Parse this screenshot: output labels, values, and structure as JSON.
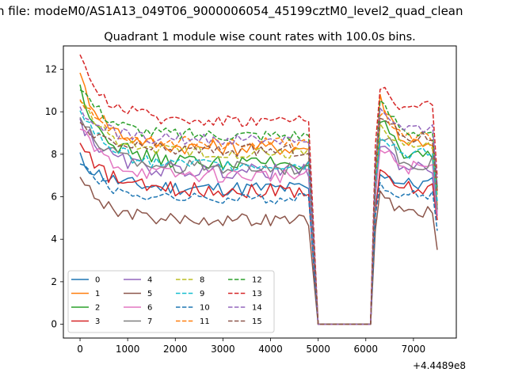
{
  "suptitle": "n file: modeM0/AS1A13_049T06_9000006054_45199cztM0_level2_quad_clean",
  "chart_data": {
    "type": "line",
    "title": "Quadrant 1 module wise count rates with 100.0s bins.",
    "xlabel": "",
    "ylabel": "",
    "x_offset_label": "+4.4489e8",
    "xlim": [
      -350,
      7900
    ],
    "ylim": [
      -0.65,
      13.1
    ],
    "x_ticks": [
      0,
      1000,
      2000,
      3000,
      4000,
      5000,
      6000,
      7000
    ],
    "x_tick_labels": [
      "0",
      "1000",
      "2000",
      "3000",
      "4000",
      "5000",
      "6000",
      "7000"
    ],
    "y_ticks": [
      0,
      2,
      4,
      6,
      8,
      10,
      12
    ],
    "y_tick_labels": [
      "0",
      "2",
      "4",
      "6",
      "8",
      "10",
      "12"
    ],
    "grid": false,
    "legend_placement": "lower-left",
    "legend_columns": 4,
    "segments": {
      "x_start": 0,
      "x_step": 100,
      "n_first": 49,
      "gap_start": 5000,
      "gap_end": 6100,
      "x_second_start": 6100,
      "x_second_end": 7500
    },
    "series": [
      {
        "name": "0",
        "color": "#1f77b4",
        "dash": "solid",
        "start": 7.8,
        "level1": 6.4,
        "amp1": 0.35,
        "peak2": 7.2,
        "level2": 6.6,
        "end": 5.3
      },
      {
        "name": "1",
        "color": "#ff7f0e",
        "dash": "solid",
        "start": 11.6,
        "level1": 8.3,
        "amp1": 0.35,
        "peak2": 10.6,
        "level2": 8.6,
        "end": 5.6
      },
      {
        "name": "2",
        "color": "#2ca02c",
        "dash": "solid",
        "start": 11.1,
        "level1": 7.6,
        "amp1": 0.35,
        "peak2": 9.6,
        "level2": 7.8,
        "end": 5.4
      },
      {
        "name": "3",
        "color": "#d62728",
        "dash": "solid",
        "start": 8.4,
        "level1": 6.3,
        "amp1": 0.35,
        "peak2": 7.0,
        "level2": 6.4,
        "end": 4.9
      },
      {
        "name": "4",
        "color": "#9467bd",
        "dash": "solid",
        "start": 9.6,
        "level1": 7.2,
        "amp1": 0.35,
        "peak2": 8.4,
        "level2": 7.4,
        "end": 5.1
      },
      {
        "name": "5",
        "color": "#8c564b",
        "dash": "solid",
        "start": 6.9,
        "level1": 4.9,
        "amp1": 0.3,
        "peak2": 6.0,
        "level2": 5.3,
        "end": 3.5
      },
      {
        "name": "6",
        "color": "#e377c2",
        "dash": "solid",
        "start": 9.2,
        "level1": 7.0,
        "amp1": 0.35,
        "peak2": 8.2,
        "level2": 7.4,
        "end": 5.2
      },
      {
        "name": "7",
        "color": "#7f7f7f",
        "dash": "solid",
        "start": 9.8,
        "level1": 7.4,
        "amp1": 0.35,
        "peak2": 9.0,
        "level2": 7.6,
        "end": 5.4
      },
      {
        "name": "8",
        "color": "#bcbd22",
        "dash": "dashed",
        "start": 10.6,
        "level1": 8.1,
        "amp1": 0.3,
        "peak2": 9.4,
        "level2": 8.4,
        "end": 6.1
      },
      {
        "name": "9",
        "color": "#17becf",
        "dash": "dashed",
        "start": 10.2,
        "level1": 7.5,
        "amp1": 0.3,
        "peak2": 9.0,
        "level2": 8.0,
        "end": 5.8
      },
      {
        "name": "10",
        "color": "#1f77b4",
        "dash": "dashed",
        "start": 7.7,
        "level1": 5.9,
        "amp1": 0.25,
        "peak2": 6.6,
        "level2": 6.1,
        "end": 4.4
      },
      {
        "name": "11",
        "color": "#ff7f0e",
        "dash": "dashed",
        "start": 10.8,
        "level1": 8.5,
        "amp1": 0.3,
        "peak2": 10.0,
        "level2": 8.8,
        "end": 6.3
      },
      {
        "name": "12",
        "color": "#2ca02c",
        "dash": "dashed",
        "start": 11.3,
        "level1": 8.9,
        "amp1": 0.3,
        "peak2": 10.4,
        "level2": 9.1,
        "end": 6.4
      },
      {
        "name": "13",
        "color": "#d62728",
        "dash": "dashed",
        "start": 12.4,
        "level1": 9.6,
        "amp1": 0.3,
        "peak2": 11.2,
        "level2": 10.2,
        "end": 6.9
      },
      {
        "name": "14",
        "color": "#9467bd",
        "dash": "dashed",
        "start": 10.0,
        "level1": 8.7,
        "amp1": 0.3,
        "peak2": 10.0,
        "level2": 9.1,
        "end": 6.5
      },
      {
        "name": "15",
        "color": "#8c564b",
        "dash": "dashed",
        "start": 9.3,
        "level1": 8.2,
        "amp1": 0.3,
        "peak2": 9.8,
        "level2": 8.8,
        "end": 6.2
      }
    ]
  }
}
